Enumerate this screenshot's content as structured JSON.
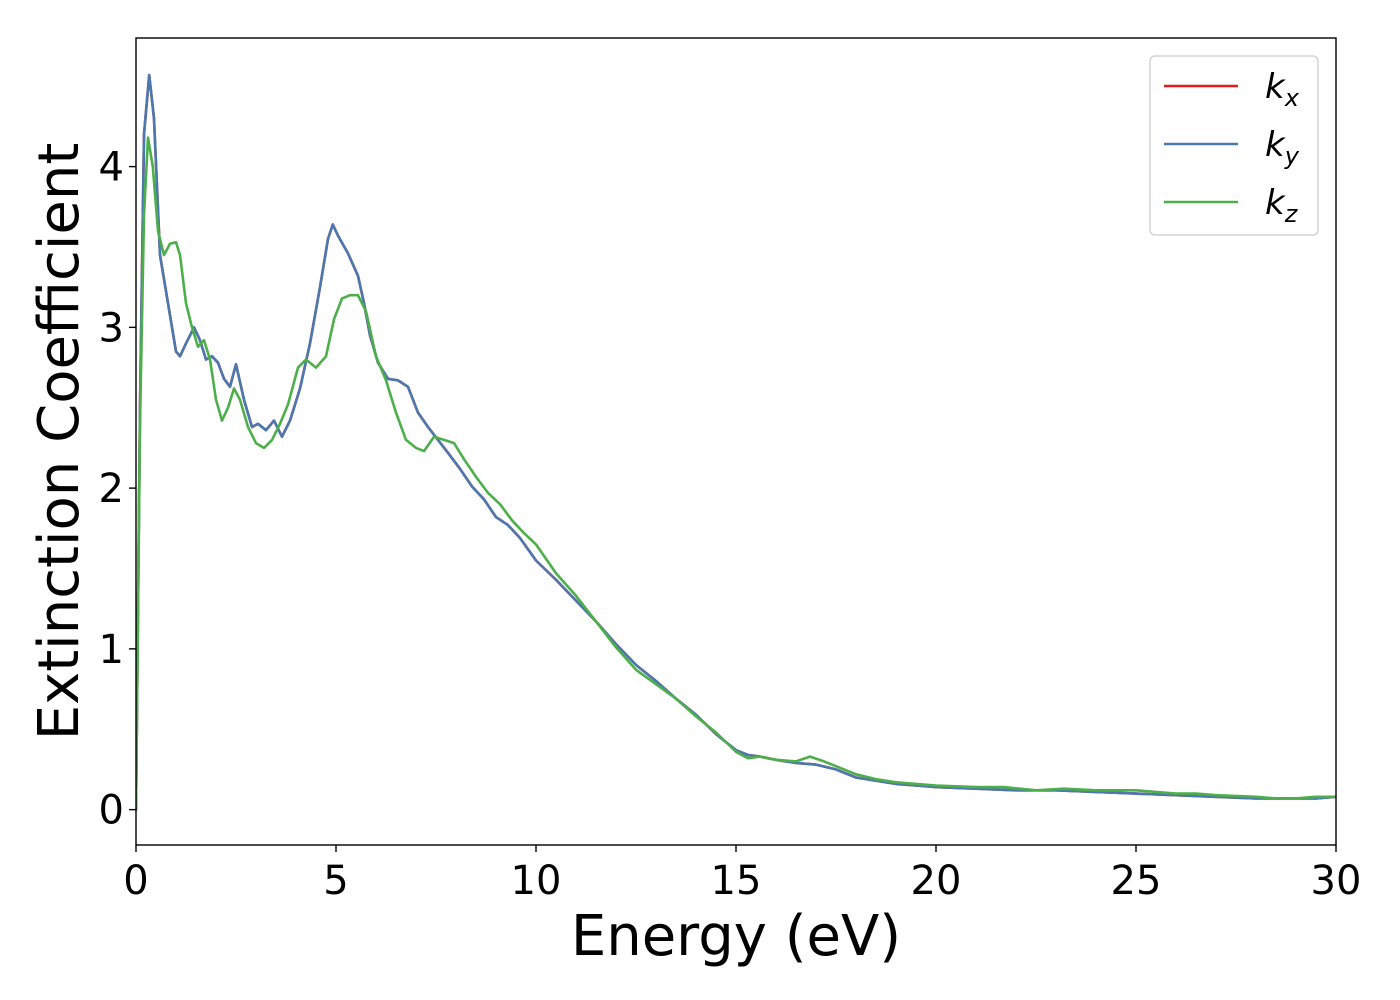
{
  "chart_data": {
    "type": "line",
    "title": "",
    "xlabel": "Energy (eV)",
    "ylabel": "Extinction Coefficient",
    "xlim": [
      0,
      30
    ],
    "ylim": [
      -0.22,
      4.8
    ],
    "xticks": [
      0,
      5,
      10,
      15,
      20,
      25,
      30
    ],
    "yticks": [
      0,
      1,
      2,
      3,
      4
    ],
    "grid": false,
    "legend_position": "top-right",
    "series": [
      {
        "name": "k_x",
        "legend_base": "k",
        "legend_sub": "x",
        "color": "#e41a1c",
        "x": [
          0,
          0.1,
          0.2,
          0.33,
          0.45,
          0.6,
          0.8,
          1.0,
          1.1,
          1.25,
          1.45,
          1.6,
          1.75,
          1.9,
          2.05,
          2.2,
          2.35,
          2.5,
          2.7,
          2.9,
          3.05,
          3.25,
          3.45,
          3.65,
          3.85,
          4.1,
          4.35,
          4.6,
          4.8,
          4.92,
          5.05,
          5.3,
          5.55,
          5.7,
          5.85,
          6.05,
          6.3,
          6.55,
          6.8,
          7.05,
          7.3,
          7.55,
          7.8,
          8.1,
          8.4,
          8.7,
          9.0,
          9.3,
          9.6,
          10.0,
          10.5,
          11.0,
          11.5,
          12.0,
          12.5,
          13.0,
          13.5,
          14.0,
          14.5,
          15.0,
          15.3,
          15.6,
          16.0,
          16.5,
          17.0,
          17.5,
          18.0,
          18.5,
          19.0,
          19.5,
          20.0,
          21.0,
          22.0,
          23.0,
          24.0,
          25.0,
          26.0,
          27.0,
          28.0,
          28.5,
          29.0,
          29.5,
          30.0
        ],
        "y": [
          0,
          2.5,
          4.2,
          4.57,
          4.3,
          3.45,
          3.15,
          2.85,
          2.82,
          2.9,
          3.0,
          2.92,
          2.8,
          2.82,
          2.78,
          2.68,
          2.63,
          2.77,
          2.55,
          2.38,
          2.4,
          2.36,
          2.42,
          2.32,
          2.42,
          2.62,
          2.9,
          3.25,
          3.55,
          3.64,
          3.57,
          3.46,
          3.32,
          3.15,
          2.95,
          2.78,
          2.68,
          2.67,
          2.63,
          2.47,
          2.38,
          2.3,
          2.22,
          2.12,
          2.01,
          1.93,
          1.82,
          1.77,
          1.69,
          1.55,
          1.43,
          1.3,
          1.17,
          1.03,
          0.9,
          0.8,
          0.69,
          0.59,
          0.47,
          0.37,
          0.34,
          0.33,
          0.31,
          0.29,
          0.28,
          0.25,
          0.2,
          0.18,
          0.16,
          0.15,
          0.14,
          0.13,
          0.12,
          0.12,
          0.11,
          0.1,
          0.09,
          0.08,
          0.07,
          0.07,
          0.07,
          0.07,
          0.08
        ]
      },
      {
        "name": "k_y",
        "legend_base": "k",
        "legend_sub": "y",
        "color": "#4a79b0",
        "x": [
          0,
          0.1,
          0.2,
          0.33,
          0.45,
          0.6,
          0.8,
          1.0,
          1.1,
          1.25,
          1.45,
          1.6,
          1.75,
          1.9,
          2.05,
          2.2,
          2.35,
          2.5,
          2.7,
          2.9,
          3.05,
          3.25,
          3.45,
          3.65,
          3.85,
          4.1,
          4.35,
          4.6,
          4.8,
          4.92,
          5.05,
          5.3,
          5.55,
          5.7,
          5.85,
          6.05,
          6.3,
          6.55,
          6.8,
          7.05,
          7.3,
          7.55,
          7.8,
          8.1,
          8.4,
          8.7,
          9.0,
          9.3,
          9.6,
          10.0,
          10.5,
          11.0,
          11.5,
          12.0,
          12.5,
          13.0,
          13.5,
          14.0,
          14.5,
          15.0,
          15.3,
          15.6,
          16.0,
          16.5,
          17.0,
          17.5,
          18.0,
          18.5,
          19.0,
          19.5,
          20.0,
          21.0,
          22.0,
          23.0,
          24.0,
          25.0,
          26.0,
          27.0,
          28.0,
          28.5,
          29.0,
          29.5,
          30.0
        ],
        "y": [
          0,
          2.5,
          4.2,
          4.57,
          4.3,
          3.45,
          3.15,
          2.85,
          2.82,
          2.9,
          3.0,
          2.92,
          2.8,
          2.82,
          2.78,
          2.68,
          2.63,
          2.77,
          2.55,
          2.38,
          2.4,
          2.36,
          2.42,
          2.32,
          2.42,
          2.62,
          2.9,
          3.25,
          3.55,
          3.64,
          3.57,
          3.46,
          3.32,
          3.15,
          2.95,
          2.78,
          2.68,
          2.67,
          2.63,
          2.47,
          2.38,
          2.3,
          2.22,
          2.12,
          2.01,
          1.93,
          1.82,
          1.77,
          1.69,
          1.55,
          1.43,
          1.3,
          1.17,
          1.03,
          0.9,
          0.8,
          0.69,
          0.59,
          0.47,
          0.37,
          0.34,
          0.33,
          0.31,
          0.29,
          0.28,
          0.25,
          0.2,
          0.18,
          0.16,
          0.15,
          0.14,
          0.13,
          0.12,
          0.12,
          0.11,
          0.1,
          0.09,
          0.08,
          0.07,
          0.07,
          0.07,
          0.07,
          0.08
        ]
      },
      {
        "name": "k_z",
        "legend_base": "k",
        "legend_sub": "z",
        "color": "#4daf4a",
        "x": [
          0,
          0.1,
          0.2,
          0.3,
          0.42,
          0.55,
          0.7,
          0.85,
          1.0,
          1.1,
          1.25,
          1.4,
          1.55,
          1.7,
          1.85,
          2.0,
          2.15,
          2.3,
          2.45,
          2.6,
          2.8,
          3.0,
          3.2,
          3.4,
          3.6,
          3.8,
          4.05,
          4.25,
          4.5,
          4.75,
          4.95,
          5.15,
          5.35,
          5.55,
          5.75,
          6.0,
          6.25,
          6.5,
          6.75,
          7.0,
          7.2,
          7.45,
          7.7,
          7.95,
          8.2,
          8.5,
          8.8,
          9.1,
          9.4,
          9.7,
          10.0,
          10.5,
          11.0,
          11.5,
          12.0,
          12.5,
          13.0,
          13.5,
          14.0,
          14.5,
          15.0,
          15.3,
          15.6,
          16.0,
          16.5,
          16.85,
          17.2,
          17.6,
          18.0,
          18.5,
          19.0,
          19.5,
          20.0,
          21.0,
          21.7,
          22.5,
          23.2,
          24.0,
          25.0,
          26.0,
          26.5,
          27.0,
          28.0,
          28.5,
          29.0,
          29.5,
          30.0
        ],
        "y": [
          0,
          2.4,
          3.7,
          4.18,
          4.0,
          3.6,
          3.45,
          3.52,
          3.53,
          3.45,
          3.15,
          3.0,
          2.88,
          2.92,
          2.8,
          2.55,
          2.42,
          2.5,
          2.62,
          2.55,
          2.38,
          2.28,
          2.25,
          2.3,
          2.4,
          2.52,
          2.75,
          2.8,
          2.75,
          2.82,
          3.05,
          3.18,
          3.2,
          3.2,
          3.1,
          2.82,
          2.67,
          2.47,
          2.3,
          2.25,
          2.23,
          2.32,
          2.3,
          2.28,
          2.18,
          2.07,
          1.97,
          1.9,
          1.8,
          1.72,
          1.65,
          1.47,
          1.33,
          1.17,
          1.01,
          0.87,
          0.78,
          0.69,
          0.58,
          0.48,
          0.36,
          0.32,
          0.33,
          0.31,
          0.3,
          0.33,
          0.3,
          0.26,
          0.22,
          0.19,
          0.17,
          0.16,
          0.15,
          0.14,
          0.14,
          0.12,
          0.13,
          0.12,
          0.12,
          0.1,
          0.1,
          0.09,
          0.08,
          0.07,
          0.07,
          0.08,
          0.08
        ]
      }
    ]
  }
}
